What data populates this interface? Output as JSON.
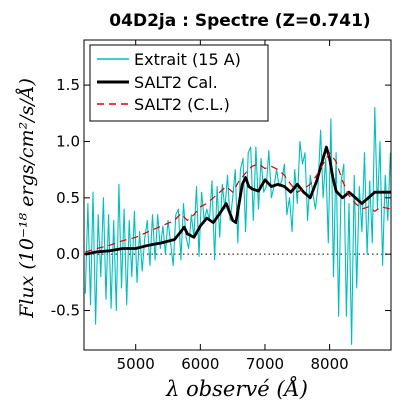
{
  "chart_data": {
    "type": "line",
    "title": "04D2ja : Spectre (Z=0.741)",
    "xlabel": "λ observé (Å)",
    "ylabel": "Flux (10⁻¹⁸ ergs/cm²/s/Å)",
    "xlim": [
      4200,
      8950
    ],
    "ylim": [
      -0.85,
      1.9
    ],
    "xticks": [
      5000,
      6000,
      7000,
      8000
    ],
    "yticks": [
      -0.5,
      0.0,
      0.5,
      1.0,
      1.5
    ],
    "xtick_labels": [
      "5000",
      "6000",
      "7000",
      "8000"
    ],
    "ytick_labels": [
      "-0.5",
      "0.0",
      "0.5",
      "1.0",
      "1.5"
    ],
    "zero_line": true,
    "grid": false,
    "legend_position": "upper-left",
    "series": [
      {
        "name": "Extrait (15 A)",
        "style": "thin-solid",
        "color": "#00bfbf",
        "x": [
          4220,
          4260,
          4300,
          4340,
          4380,
          4420,
          4460,
          4500,
          4540,
          4580,
          4620,
          4660,
          4700,
          4740,
          4780,
          4820,
          4860,
          4900,
          4940,
          4980,
          5020,
          5060,
          5100,
          5140,
          5180,
          5220,
          5260,
          5300,
          5340,
          5380,
          5420,
          5460,
          5500,
          5540,
          5580,
          5620,
          5660,
          5700,
          5740,
          5780,
          5820,
          5860,
          5900,
          5940,
          5980,
          6020,
          6060,
          6100,
          6140,
          6180,
          6220,
          6260,
          6300,
          6340,
          6380,
          6420,
          6460,
          6500,
          6540,
          6580,
          6620,
          6660,
          6700,
          6740,
          6780,
          6820,
          6860,
          6900,
          6940,
          6980,
          7020,
          7060,
          7100,
          7140,
          7180,
          7220,
          7260,
          7300,
          7340,
          7380,
          7420,
          7460,
          7500,
          7540,
          7580,
          7620,
          7660,
          7700,
          7740,
          7780,
          7820,
          7860,
          7900,
          7940,
          7980,
          8020,
          8060,
          8100,
          8140,
          8180,
          8220,
          8260,
          8300,
          8340,
          8380,
          8420,
          8460,
          8500,
          8540,
          8580,
          8620,
          8660,
          8700,
          8740,
          8780,
          8820,
          8860,
          8900,
          8940
        ],
        "y": [
          -0.35,
          0.45,
          -0.45,
          0.55,
          -0.62,
          0.35,
          -0.2,
          0.5,
          -0.4,
          0.35,
          -0.48,
          0.3,
          -0.5,
          0.62,
          -0.3,
          0.4,
          -0.45,
          0.3,
          -0.2,
          0.38,
          -0.25,
          0.2,
          -0.15,
          0.15,
          0.3,
          -0.1,
          0.35,
          -0.05,
          0.35,
          0.05,
          0.25,
          0.0,
          0.3,
          0.1,
          -0.1,
          0.35,
          0.4,
          -0.05,
          0.45,
          0.15,
          0.05,
          0.35,
          0.15,
          0.6,
          -0.02,
          0.55,
          0.3,
          0.4,
          0.3,
          0.65,
          -0.05,
          0.6,
          0.15,
          0.62,
          0.4,
          0.7,
          0.3,
          0.5,
          0.75,
          0.1,
          0.75,
          0.85,
          0.2,
          0.9,
          0.95,
          0.3,
          0.95,
          0.4,
          0.85,
          0.55,
          0.6,
          0.92,
          0.5,
          0.6,
          0.75,
          0.6,
          0.65,
          0.8,
          0.35,
          0.5,
          0.2,
          0.75,
          0.45,
          1.0,
          0.8,
          0.9,
          0.3,
          0.7,
          0.55,
          0.4,
          0.6,
          1.1,
          0.5,
          0.85,
          0.1,
          1.2,
          -0.2,
          0.9,
          -0.55,
          0.65,
          0.8,
          -0.55,
          0.45,
          -0.8,
          0.7,
          -0.3,
          0.6,
          0.2,
          0.9,
          0.0,
          0.65,
          0.1,
          1.3,
          0.4,
          1.0,
          -0.1,
          0.7,
          0.3,
          0.9
        ]
      },
      {
        "name": "SALT2 Cal.",
        "style": "thick-solid",
        "color": "#000000",
        "x": [
          4220,
          4400,
          4600,
          4800,
          5000,
          5200,
          5400,
          5600,
          5700,
          5750,
          5800,
          5900,
          6000,
          6100,
          6200,
          6300,
          6400,
          6500,
          6550,
          6600,
          6650,
          6700,
          6750,
          6800,
          6900,
          7000,
          7100,
          7200,
          7300,
          7400,
          7500,
          7600,
          7700,
          7800,
          7900,
          7950,
          8000,
          8050,
          8100,
          8200,
          8300,
          8400,
          8500,
          8600,
          8700,
          8800,
          8950
        ],
        "y": [
          0.0,
          0.02,
          0.03,
          0.05,
          0.05,
          0.08,
          0.1,
          0.13,
          0.2,
          0.24,
          0.18,
          0.15,
          0.25,
          0.32,
          0.28,
          0.36,
          0.45,
          0.3,
          0.28,
          0.45,
          0.62,
          0.68,
          0.6,
          0.58,
          0.56,
          0.66,
          0.6,
          0.62,
          0.6,
          0.55,
          0.62,
          0.55,
          0.5,
          0.65,
          0.85,
          0.95,
          0.85,
          0.68,
          0.56,
          0.5,
          0.55,
          0.5,
          0.45,
          0.5,
          0.55,
          0.55,
          0.55
        ]
      },
      {
        "name": "SALT2 (C.L.)",
        "style": "dashed",
        "color": "#dd0000",
        "x": [
          4220,
          4400,
          4600,
          4800,
          5000,
          5200,
          5400,
          5600,
          5700,
          5800,
          5900,
          6000,
          6100,
          6200,
          6300,
          6400,
          6500,
          6600,
          6700,
          6800,
          6900,
          7000,
          7100,
          7200,
          7300,
          7400,
          7500,
          7600,
          7700,
          7800,
          7900,
          8000,
          8100,
          8200,
          8300,
          8400,
          8500,
          8600,
          8700,
          8800,
          8950
        ],
        "y": [
          0.02,
          0.05,
          0.08,
          0.12,
          0.15,
          0.2,
          0.25,
          0.3,
          0.36,
          0.3,
          0.35,
          0.42,
          0.45,
          0.5,
          0.55,
          0.6,
          0.55,
          0.65,
          0.72,
          0.78,
          0.8,
          0.76,
          0.78,
          0.75,
          0.7,
          0.62,
          0.55,
          0.58,
          0.62,
          0.7,
          0.8,
          0.9,
          0.82,
          0.65,
          0.52,
          0.45,
          0.4,
          0.42,
          0.38,
          0.42,
          0.4
        ]
      }
    ]
  }
}
